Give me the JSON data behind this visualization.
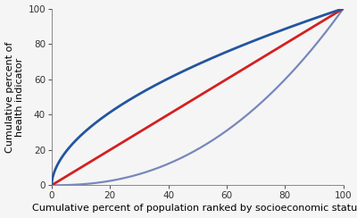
{
  "title": "",
  "xlabel": "Cumulative percent of population ranked by socioeconomic status",
  "ylabel": "Cumulative percent of\nhealth indicator",
  "xlim": [
    0,
    100
  ],
  "ylim": [
    0,
    100
  ],
  "xticks": [
    0,
    20,
    40,
    60,
    80,
    100
  ],
  "yticks": [
    0,
    20,
    40,
    60,
    80,
    100
  ],
  "line_of_equality": {
    "color": "#d42020",
    "linewidth": 2.0
  },
  "upper_curve": {
    "color": "#2255a0",
    "linewidth": 2.0,
    "power": 0.55
  },
  "lower_curve": {
    "color": "#7788bb",
    "linewidth": 1.6,
    "power": 2.3
  },
  "background_color": "#f5f5f5",
  "font_size_labels": 8,
  "font_size_ticks": 7.5
}
